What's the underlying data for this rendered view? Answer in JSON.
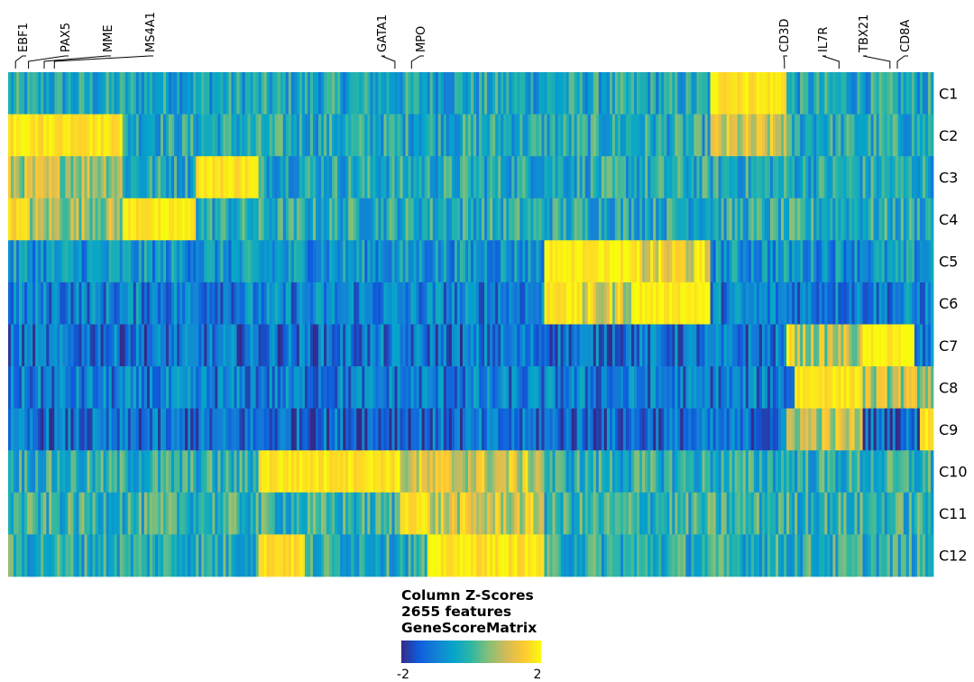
{
  "chart_data": {
    "type": "heatmap",
    "rows": [
      "C1",
      "C2",
      "C3",
      "C4",
      "C5",
      "C6",
      "C7",
      "C8",
      "C9",
      "C10",
      "C11",
      "C12"
    ],
    "gene_labels": [
      {
        "name": "EBF1",
        "col": 0.008
      },
      {
        "name": "PAX5",
        "col": 0.022
      },
      {
        "name": "MME",
        "col": 0.039
      },
      {
        "name": "MS4A1",
        "col": 0.05
      },
      {
        "name": "GATA1",
        "col": 0.418
      },
      {
        "name": "MPO",
        "col": 0.436
      },
      {
        "name": "CD3D",
        "col": 0.839
      },
      {
        "name": "IL7R",
        "col": 0.898
      },
      {
        "name": "TBX21",
        "col": 0.953
      },
      {
        "name": "CD8A",
        "col": 0.961
      }
    ],
    "n_features": 2655,
    "value_range": [
      -2,
      2
    ],
    "high_blocks": [
      {
        "row": "C1",
        "col_start": 0.758,
        "col_end": 0.84,
        "level": 1.8
      },
      {
        "row": "C2",
        "col_start": 0.0,
        "col_end": 0.125,
        "level": 1.8
      },
      {
        "row": "C2",
        "col_start": 0.758,
        "col_end": 0.84,
        "level": 0.9
      },
      {
        "row": "C3",
        "col_start": 0.0,
        "col_end": 0.125,
        "level": 0.8
      },
      {
        "row": "C3",
        "col_start": 0.203,
        "col_end": 0.27,
        "level": 1.8
      },
      {
        "row": "C4",
        "col_start": 0.0,
        "col_end": 0.025,
        "level": 1.6
      },
      {
        "row": "C4",
        "col_start": 0.025,
        "col_end": 0.125,
        "level": 0.7
      },
      {
        "row": "C4",
        "col_start": 0.125,
        "col_end": 0.203,
        "level": 1.8
      },
      {
        "row": "C5",
        "col_start": 0.58,
        "col_end": 0.675,
        "level": 1.9
      },
      {
        "row": "C5",
        "col_start": 0.675,
        "col_end": 0.758,
        "level": 1.3
      },
      {
        "row": "C6",
        "col_start": 0.58,
        "col_end": 0.62,
        "level": 1.8
      },
      {
        "row": "C6",
        "col_start": 0.62,
        "col_end": 0.675,
        "level": 1.1
      },
      {
        "row": "C6",
        "col_start": 0.675,
        "col_end": 0.758,
        "level": 1.9
      },
      {
        "row": "C7",
        "col_start": 0.84,
        "col_end": 0.85,
        "level": 1.8
      },
      {
        "row": "C7",
        "col_start": 0.85,
        "col_end": 0.925,
        "level": 0.8
      },
      {
        "row": "C7",
        "col_start": 0.925,
        "col_end": 0.98,
        "level": 1.9
      },
      {
        "row": "C8",
        "col_start": 0.85,
        "col_end": 0.925,
        "level": 1.8
      },
      {
        "row": "C8",
        "col_start": 0.925,
        "col_end": 1.0,
        "level": 0.8
      },
      {
        "row": "C9",
        "col_start": 0.84,
        "col_end": 0.925,
        "level": 0.9
      },
      {
        "row": "C9",
        "col_start": 0.985,
        "col_end": 1.0,
        "level": 1.8
      },
      {
        "row": "C10",
        "col_start": 0.27,
        "col_end": 0.425,
        "level": 1.8
      },
      {
        "row": "C10",
        "col_start": 0.425,
        "col_end": 0.58,
        "level": 1.0
      },
      {
        "row": "C11",
        "col_start": 0.425,
        "col_end": 0.452,
        "level": 1.8
      },
      {
        "row": "C11",
        "col_start": 0.452,
        "col_end": 0.58,
        "level": 1.0
      },
      {
        "row": "C12",
        "col_start": 0.27,
        "col_end": 0.32,
        "level": 1.7
      },
      {
        "row": "C12",
        "col_start": 0.452,
        "col_end": 0.58,
        "level": 1.8
      }
    ],
    "legend": {
      "title_lines": [
        "Column Z-Scores",
        "2655 features",
        "GeneScoreMatrix"
      ],
      "min_label": "-2",
      "max_label": "2",
      "colors": [
        "#352a87",
        "#0f5cdd",
        "#1481d6",
        "#06a4ca",
        "#2eb7a4",
        "#87bf77",
        "#d1bb59",
        "#fec832",
        "#f9fb0e"
      ]
    }
  }
}
